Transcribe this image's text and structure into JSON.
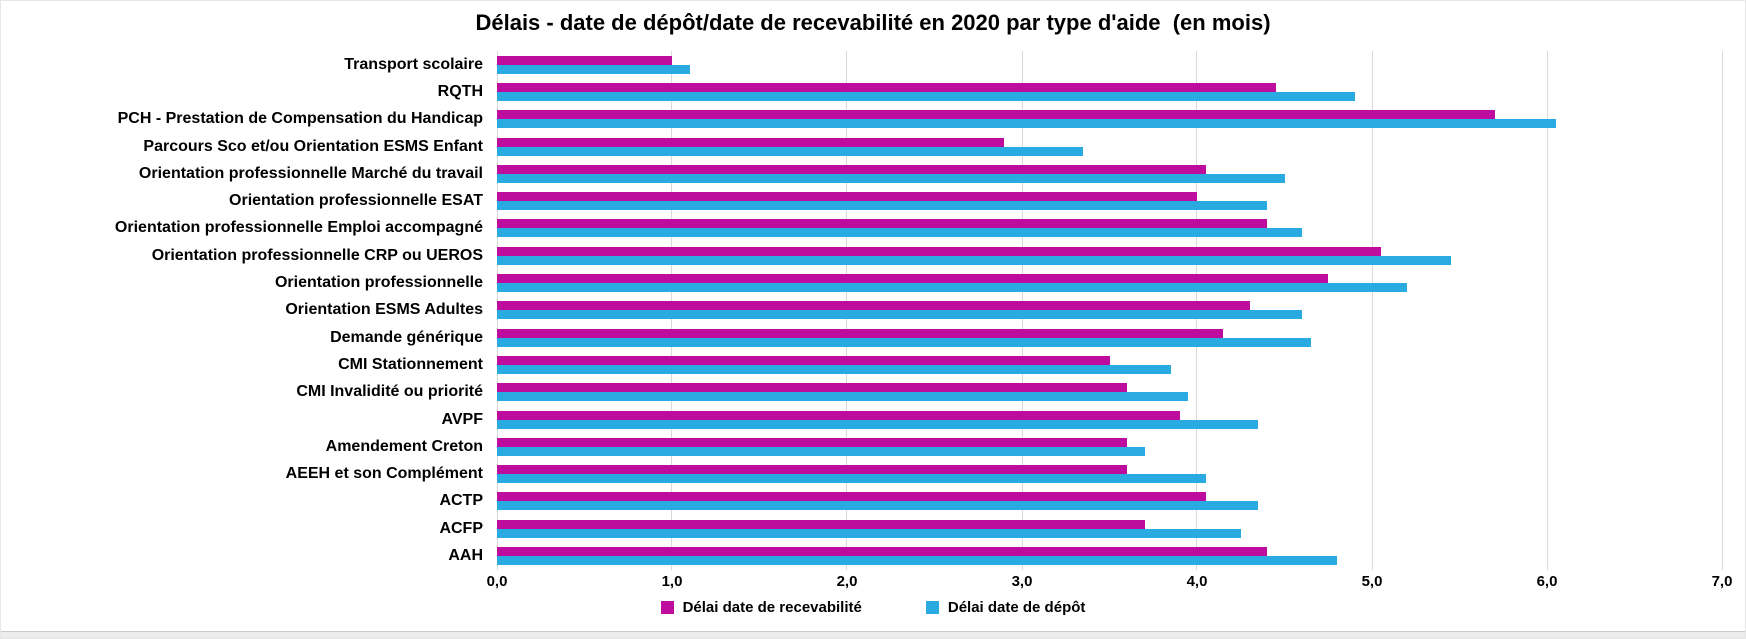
{
  "title": "Délais - date de dépôt/date de recevabilité en 2020 par type d'aide  (en mois)",
  "chart_data": {
    "type": "bar",
    "orientation": "horizontal",
    "title": "Délais - date de dépôt/date de recevabilité en 2020 par type d'aide  (en mois)",
    "categories": [
      "Transport scolaire",
      "RQTH",
      "PCH - Prestation de Compensation du Handicap",
      "Parcours Sco et/ou Orientation ESMS Enfant",
      "Orientation professionnelle Marché du travail",
      "Orientation professionnelle ESAT",
      "Orientation professionnelle Emploi accompagné",
      "Orientation professionnelle CRP ou UEROS",
      "Orientation professionnelle",
      "Orientation ESMS Adultes",
      "Demande générique",
      "CMI Stationnement",
      "CMI Invalidité ou priorité",
      "AVPF",
      "Amendement Creton",
      "AEEH et son Complément",
      "ACTP",
      "ACFP",
      "AAH"
    ],
    "series": [
      {
        "name": "Délai date de recevabilité",
        "color": "#BE0C9E",
        "values": [
          1.0,
          4.45,
          5.7,
          2.9,
          4.05,
          4.0,
          4.4,
          5.05,
          4.75,
          4.3,
          4.15,
          3.5,
          3.6,
          3.9,
          3.6,
          3.6,
          4.05,
          3.7,
          4.4
        ]
      },
      {
        "name": "Délai date de dépôt",
        "color": "#29ABE2",
        "values": [
          1.1,
          4.9,
          6.05,
          3.35,
          4.5,
          4.4,
          4.6,
          5.45,
          5.2,
          4.6,
          4.65,
          3.85,
          3.95,
          4.35,
          3.7,
          4.05,
          4.35,
          4.25,
          4.8
        ]
      }
    ],
    "xlim": [
      0,
      7
    ],
    "x_tick_labels": [
      "0,0",
      "1,0",
      "2,0",
      "3,0",
      "4,0",
      "5,0",
      "6,0",
      "7,0"
    ],
    "unit": "mois",
    "grid": "vertical",
    "gridline_color": "#d9d9d9",
    "legend_position": "bottom"
  }
}
